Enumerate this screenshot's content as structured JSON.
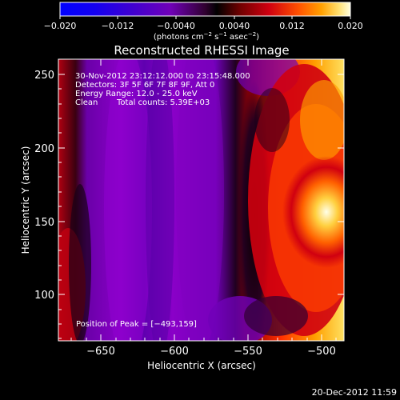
{
  "colorbar": {
    "ticks": [
      "−0.020",
      "−0.012",
      "−0.0040",
      "0.0040",
      "0.012",
      "0.020"
    ],
    "unit_label": {
      "prefix": "(photons cm",
      "sup1": "−2",
      "mid1": " s",
      "sup2": "−1",
      "mid2": " asec",
      "sup3": "−2",
      "suffix": ")"
    }
  },
  "plot": {
    "title": "Reconstructed RHESSI Image",
    "xlabel": "Heliocentric X (arcsec)",
    "ylabel": "Heliocentric Y (arcsec)",
    "xticks": [
      "−650",
      "−600",
      "−550",
      "−500"
    ],
    "yticks": [
      "250",
      "200",
      "150",
      "100"
    ],
    "xrange_arcsec": [
      -680,
      -485
    ],
    "yrange_arcsec": [
      70,
      265
    ]
  },
  "annotations": {
    "time_range": "30-Nov-2012 23:12:12.000 to 23:15:48.000",
    "detectors": "Detectors: 3F 5F 6F 7F 8F 9F, Att 0",
    "energy": "Energy Range: 12.0 - 25.0 keV",
    "clean_label": "Clean",
    "total_counts": "Total counts: 5.39E+03",
    "peak": "Position of Peak = [−493,159]"
  },
  "footer": {
    "date": "20-Dec-2012 11:59"
  },
  "colors": {
    "background": "#000000",
    "colormap_low": "#0000ff",
    "colormap_mid": "#8000c0",
    "colormap_high": "#ffffe0"
  }
}
